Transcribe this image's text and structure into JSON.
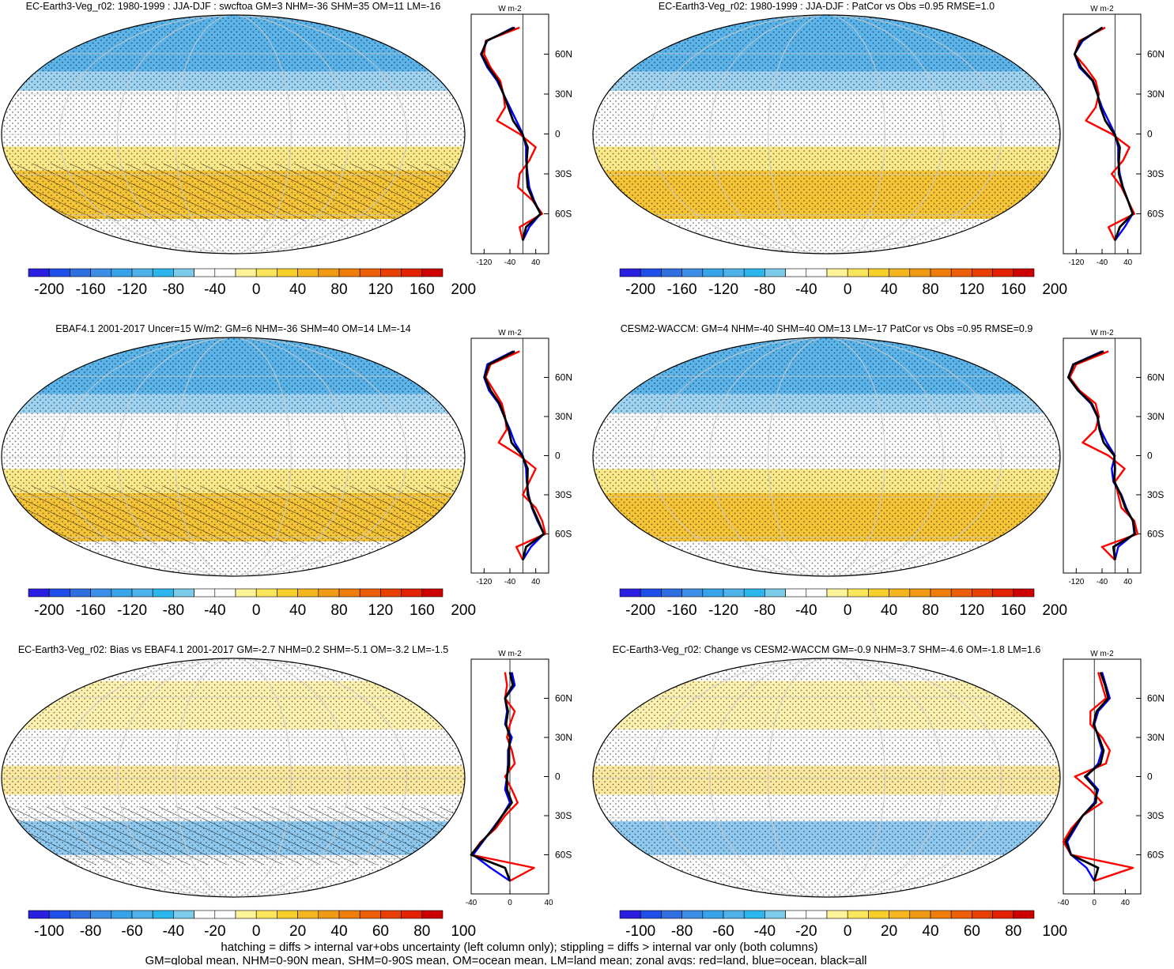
{
  "colorbar_palette": [
    "#2a1fe0",
    "#1f4ee8",
    "#2f6fe0",
    "#3c8ee6",
    "#37a3e8",
    "#4fb2ea",
    "#2bb7ee",
    "#7ccbe9",
    "#ffffff",
    "#ffffff",
    "#fff39a",
    "#fbe55a",
    "#f6cf2b",
    "#f4b51f",
    "#f19b14",
    "#ee7d0c",
    "#ec5f08",
    "#e84004",
    "#e22202",
    "#cc0000"
  ],
  "map_colors": {
    "ocean_fill": "#ffffff",
    "land_outline": "#000000",
    "zonal_land": "#ff0000",
    "zonal_ocean": "#0000ff",
    "zonal_all": "#000000"
  },
  "panels": [
    {
      "id": "tl",
      "title": "EC-Earth3-Veg_r02: 1980-1999 : JJA-DJF : swcftoa GM=3 NHM=-36 SHM=35 OM=11 LM=-16",
      "cb_labels": [
        "-200",
        "-160",
        "-120",
        "-80",
        "-40",
        "0",
        "40",
        "80",
        "120",
        "160",
        "200"
      ],
      "zonal_xticks": [
        "-120",
        "-40",
        "40"
      ],
      "zonal_xlim": [
        -160,
        80
      ],
      "units": "W m-2",
      "lat_ticks": [
        "60N",
        "30N",
        "0",
        "30S",
        "60S"
      ],
      "hatching": true
    },
    {
      "id": "tr",
      "title": "EC-Earth3-Veg_r02: 1980-1999 : JJA-DJF : PatCor vs Obs =0.95 RMSE=1.0",
      "cb_labels": [
        "-200",
        "-160",
        "-120",
        "-80",
        "-40",
        "0",
        "40",
        "80",
        "120",
        "160",
        "200"
      ],
      "zonal_xticks": [
        "-120",
        "-40",
        "40"
      ],
      "zonal_xlim": [
        -160,
        80
      ],
      "units": "W m-2",
      "lat_ticks": [
        "60N",
        "30N",
        "0",
        "30S",
        "60S"
      ],
      "hatching": false
    },
    {
      "id": "ml",
      "title": "EBAF4.1 2001-2017 Uncer=15 W/m2: GM=6 NHM=-36 SHM=40 OM=14 LM=-14",
      "cb_labels": [
        "-200",
        "-160",
        "-120",
        "-80",
        "-40",
        "0",
        "40",
        "80",
        "120",
        "160",
        "200"
      ],
      "zonal_xticks": [
        "-120",
        "-40",
        "40"
      ],
      "zonal_xlim": [
        -160,
        80
      ],
      "units": "W m-2",
      "lat_ticks": [
        "60N",
        "30N",
        "0",
        "30S",
        "60S"
      ],
      "hatching": true
    },
    {
      "id": "mr",
      "title": "CESM2-WACCM: GM=4 NHM=-40 SHM=40 OM=13 LM=-17 PatCor vs Obs =0.95 RMSE=0.9",
      "cb_labels": [
        "-200",
        "-160",
        "-120",
        "-80",
        "-40",
        "0",
        "40",
        "80",
        "120",
        "160",
        "200"
      ],
      "zonal_xticks": [
        "-120",
        "-40",
        "40"
      ],
      "zonal_xlim": [
        -160,
        80
      ],
      "units": "W m-2",
      "lat_ticks": [
        "60N",
        "30N",
        "0",
        "30S",
        "60S"
      ],
      "hatching": false
    },
    {
      "id": "bl",
      "title": "EC-Earth3-Veg_r02: Bias vs EBAF4.1 2001-2017 GM=-2.7 NHM=0.2 SHM=-5.1 OM=-3.2 LM=-1.5",
      "cb_labels": [
        "-100",
        "-80",
        "-60",
        "-40",
        "-20",
        "0",
        "20",
        "40",
        "60",
        "80",
        "100"
      ],
      "zonal_xticks": [
        "-40",
        "0",
        "40"
      ],
      "zonal_xlim": [
        -40,
        40
      ],
      "units": "W m-2",
      "lat_ticks": [
        "60N",
        "30N",
        "0",
        "30S",
        "60S"
      ],
      "hatching": true
    },
    {
      "id": "br",
      "title": "EC-Earth3-Veg_r02: Change vs CESM2-WACCM GM=-0.9 NHM=3.7 SHM=-4.6 OM=-1.8 LM=1.6",
      "cb_labels": [
        "-100",
        "-80",
        "-60",
        "-40",
        "-20",
        "0",
        "20",
        "40",
        "60",
        "80",
        "100"
      ],
      "zonal_xticks": [
        "-40",
        "0",
        "40"
      ],
      "zonal_xlim": [
        -40,
        60
      ],
      "units": "W m-2",
      "lat_ticks": [
        "60N",
        "30N",
        "0",
        "30S",
        "60S"
      ],
      "hatching": false
    }
  ],
  "footer": {
    "line1": "hatching = diffs > internal var+obs uncertainty (left column only); stippling = diffs > internal var only (both columns)",
    "line2": "GM=global mean, NHM=0-90N mean, SHM=0-90S mean, OM=ocean mean, LM=land mean; zonal avgs: red=land, blue=ocean, black=all"
  },
  "chart_data": [
    {
      "type": "heatmap",
      "panel": "tl",
      "title": "EC-Earth3-Veg_r02: 1980-1999 : JJA-DJF : swcftoa GM=3 NHM=-36 SHM=35 OM=11 LM=-16",
      "zonal_mean": {
        "lat": [
          80,
          70,
          60,
          50,
          40,
          30,
          20,
          10,
          0,
          -10,
          -20,
          -30,
          -40,
          -50,
          -60,
          -70,
          -80
        ],
        "series": [
          {
            "name": "land",
            "values": [
              -10,
              -115,
              -120,
              -100,
              -70,
              -60,
              -55,
              -80,
              -10,
              40,
              20,
              -10,
              -15,
              30,
              60,
              -10,
              0
            ]
          },
          {
            "name": "ocean",
            "values": [
              -30,
              -110,
              -130,
              -110,
              -80,
              -60,
              -40,
              -20,
              0,
              10,
              10,
              15,
              20,
              35,
              55,
              20,
              0
            ]
          },
          {
            "name": "all",
            "values": [
              -25,
              -112,
              -128,
              -106,
              -76,
              -60,
              -45,
              -30,
              -2,
              15,
              12,
              12,
              15,
              33,
              55,
              10,
              0
            ]
          }
        ]
      }
    },
    {
      "type": "heatmap",
      "panel": "tr",
      "title": "EC-Earth3-Veg_r02: 1980-1999 : JJA-DJF : PatCor vs Obs =0.95 RMSE=1.0",
      "zonal_mean": {
        "lat": [
          80,
          70,
          60,
          50,
          40,
          30,
          20,
          10,
          0,
          -10,
          -20,
          -30,
          -40,
          -50,
          -60,
          -70,
          -80
        ],
        "series": [
          {
            "name": "land",
            "values": [
              -30,
              -110,
              -125,
              -90,
              -60,
              -50,
              -60,
              -90,
              -10,
              45,
              25,
              -10,
              20,
              40,
              60,
              -20,
              0
            ]
          },
          {
            "name": "ocean",
            "values": [
              -40,
              -100,
              -125,
              -110,
              -70,
              -55,
              -40,
              -20,
              0,
              10,
              10,
              15,
              25,
              40,
              55,
              30,
              0
            ]
          },
          {
            "name": "all",
            "values": [
              -38,
              -105,
              -125,
              -105,
              -68,
              -54,
              -45,
              -30,
              -2,
              15,
              12,
              12,
              24,
              40,
              55,
              15,
              0
            ]
          }
        ]
      }
    },
    {
      "type": "heatmap",
      "panel": "ml",
      "title": "EBAF4.1 2001-2017 Uncer=15 W/m2: GM=6 NHM=-36 SHM=40 OM=14 LM=-14",
      "zonal_mean": {
        "lat": [
          80,
          70,
          60,
          50,
          40,
          30,
          20,
          10,
          0,
          -10,
          -20,
          -30,
          -40,
          -50,
          -60,
          -70,
          -80
        ],
        "series": [
          {
            "name": "land",
            "values": [
              -10,
              -100,
              -115,
              -90,
              -65,
              -55,
              -50,
              -75,
              -10,
              40,
              20,
              0,
              40,
              60,
              70,
              -20,
              0
            ]
          },
          {
            "name": "ocean",
            "values": [
              -30,
              -110,
              -120,
              -105,
              -75,
              -58,
              -40,
              -25,
              0,
              10,
              12,
              18,
              28,
              45,
              65,
              25,
              0
            ]
          },
          {
            "name": "all",
            "values": [
              -25,
              -105,
              -118,
              -100,
              -72,
              -57,
              -44,
              -35,
              -2,
              15,
              14,
              15,
              30,
              48,
              65,
              10,
              0
            ]
          }
        ]
      }
    },
    {
      "type": "heatmap",
      "panel": "mr",
      "title": "CESM2-WACCM: GM=4 NHM=-40 SHM=40 OM=13 LM=-17 PatCor vs Obs =0.95 RMSE=0.9",
      "zonal_mean": {
        "lat": [
          80,
          70,
          60,
          50,
          40,
          30,
          20,
          10,
          0,
          -10,
          -20,
          -30,
          -40,
          -50,
          -60,
          -70,
          -80
        ],
        "series": [
          {
            "name": "land",
            "values": [
              -20,
              -120,
              -140,
              -110,
              -60,
              -50,
              -60,
              -100,
              -20,
              30,
              0,
              10,
              20,
              60,
              70,
              -40,
              0
            ]
          },
          {
            "name": "ocean",
            "values": [
              -40,
              -130,
              -145,
              -115,
              -75,
              -55,
              -45,
              -25,
              0,
              -10,
              -5,
              20,
              35,
              55,
              60,
              10,
              0
            ]
          },
          {
            "name": "all",
            "values": [
              -35,
              -128,
              -144,
              -114,
              -72,
              -54,
              -48,
              -35,
              -2,
              0,
              -2,
              18,
              32,
              56,
              62,
              -5,
              0
            ]
          }
        ]
      }
    },
    {
      "type": "heatmap",
      "panel": "bl",
      "title": "EC-Earth3-Veg_r02: Bias vs EBAF4.1 2001-2017 GM=-2.7 NHM=0.2 SHM=-5.1 OM=-3.2 LM=-1.5",
      "zonal_mean": {
        "lat": [
          80,
          70,
          60,
          50,
          40,
          30,
          20,
          10,
          0,
          -10,
          -20,
          -30,
          -40,
          -50,
          -60,
          -70,
          -80
        ],
        "series": [
          {
            "name": "land",
            "values": [
              -5,
              -3,
              -5,
              5,
              0,
              -3,
              2,
              5,
              -5,
              2,
              8,
              -5,
              -15,
              -30,
              -40,
              25,
              0
            ]
          },
          {
            "name": "ocean",
            "values": [
              2,
              5,
              -5,
              -3,
              -5,
              2,
              -2,
              -2,
              -3,
              -5,
              0,
              -8,
              -18,
              -28,
              -38,
              -20,
              0
            ]
          },
          {
            "name": "all",
            "values": [
              0,
              3,
              -5,
              -2,
              -4,
              0,
              -1,
              -1,
              -3,
              -3,
              2,
              -8,
              -17,
              -29,
              -40,
              -5,
              0
            ]
          }
        ]
      }
    },
    {
      "type": "heatmap",
      "panel": "br",
      "title": "EC-Earth3-Veg_r02: Change vs CESM2-WACCM GM=-0.9 NHM=3.7 SHM=-4.6 OM=-1.8 LM=1.6",
      "zonal_mean": {
        "lat": [
          80,
          70,
          60,
          50,
          40,
          30,
          20,
          10,
          0,
          -10,
          -20,
          -30,
          -40,
          -50,
          -60,
          -70,
          -80
        ],
        "series": [
          {
            "name": "land",
            "values": [
              5,
              10,
              15,
              -5,
              -5,
              10,
              20,
              15,
              -25,
              -5,
              10,
              -15,
              -30,
              -40,
              -30,
              50,
              0
            ]
          },
          {
            "name": "ocean",
            "values": [
              10,
              15,
              20,
              5,
              0,
              5,
              10,
              5,
              -10,
              5,
              0,
              -15,
              -25,
              -35,
              -30,
              -10,
              0
            ]
          },
          {
            "name": "all",
            "values": [
              8,
              14,
              18,
              3,
              -1,
              6,
              12,
              8,
              -12,
              3,
              2,
              -15,
              -27,
              -37,
              -30,
              5,
              0
            ]
          }
        ]
      }
    }
  ]
}
